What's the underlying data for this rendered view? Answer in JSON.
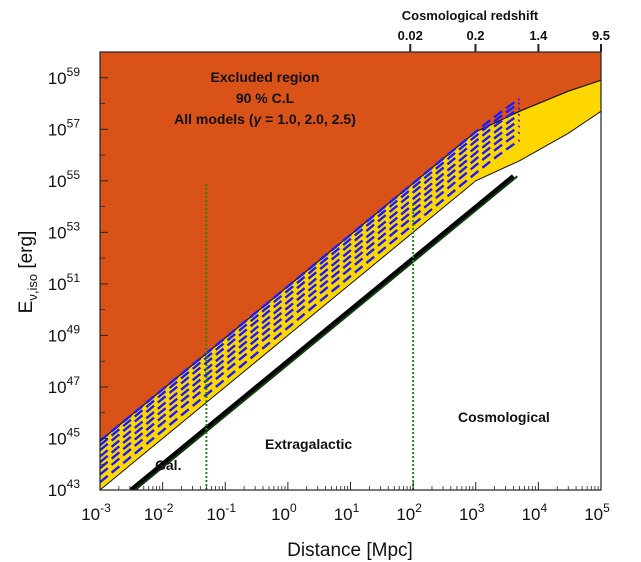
{
  "chart_data": {
    "type": "area",
    "xlabel": "Distance [Mpc]",
    "ylabel_main": "E",
    "ylabel_sub": "ν,iso",
    "ylabel_unit": " [erg]",
    "xscale": "log",
    "yscale": "log",
    "xlim": [
      0.001,
      100000
    ],
    "ylim": [
      1e+43,
      1e+60
    ],
    "x_ticks": [
      {
        "exp": -3,
        "base": "10",
        "sup": "-3"
      },
      {
        "exp": -2,
        "base": "10",
        "sup": "-2"
      },
      {
        "exp": -1,
        "base": "10",
        "sup": "-1"
      },
      {
        "exp": 0,
        "base": "10",
        "sup": "0"
      },
      {
        "exp": 1,
        "base": "10",
        "sup": "1"
      },
      {
        "exp": 2,
        "base": "10",
        "sup": "2"
      },
      {
        "exp": 3,
        "base": "10",
        "sup": "3"
      },
      {
        "exp": 4,
        "base": "10",
        "sup": "4"
      },
      {
        "exp": 5,
        "base": "10",
        "sup": "5"
      }
    ],
    "y_ticks": [
      {
        "exp": 43,
        "base": "10",
        "sup": "43"
      },
      {
        "exp": 45,
        "base": "10",
        "sup": "45"
      },
      {
        "exp": 47,
        "base": "10",
        "sup": "47"
      },
      {
        "exp": 49,
        "base": "10",
        "sup": "49"
      },
      {
        "exp": 51,
        "base": "10",
        "sup": "51"
      },
      {
        "exp": 53,
        "base": "10",
        "sup": "53"
      },
      {
        "exp": 55,
        "base": "10",
        "sup": "55"
      },
      {
        "exp": 57,
        "base": "10",
        "sup": "57"
      },
      {
        "exp": 59,
        "base": "10",
        "sup": "59"
      }
    ],
    "top_axis": {
      "label": "Cosmological redshift",
      "ticks": [
        {
          "label": "0.02",
          "distance_mpc": 90
        },
        {
          "label": "0.2",
          "distance_mpc": 990
        },
        {
          "label": "1.4",
          "distance_mpc": 10000
        },
        {
          "label": "9.5",
          "distance_mpc": 100000
        }
      ]
    },
    "series": [
      {
        "name": "Excluded region (90% C.L.)",
        "kind": "filled-region-above",
        "color": "#d95319",
        "lower_boundary": [
          [
            0.001,
            8e+44
          ],
          [
            0.1,
            8e+48
          ],
          [
            10,
            8e+52
          ],
          [
            1000,
            8e+56
          ],
          [
            5000,
            5e+57
          ],
          [
            30000,
            3e+58
          ],
          [
            100000,
            8e+58
          ]
        ]
      },
      {
        "kind": "band",
        "color": "#ffd700",
        "upper": [
          [
            0.001,
            8e+44
          ],
          [
            0.1,
            8e+48
          ],
          [
            10,
            8e+52
          ],
          [
            1000,
            8e+56
          ],
          [
            5000,
            5e+57
          ],
          [
            30000,
            3e+58
          ],
          [
            100000,
            8e+58
          ]
        ],
        "lower": [
          [
            0.001,
            1e+43
          ],
          [
            1,
            1e+49
          ],
          [
            100,
            1e+53
          ],
          [
            1000,
            1e+55
          ],
          [
            5000,
            6e+55
          ],
          [
            30000,
            7e+56
          ],
          [
            100000,
            5e+57
          ]
        ]
      },
      {
        "kind": "dashed-lines",
        "color": "#1a1aff",
        "x_start": 0.001,
        "x_end": 5000,
        "intercepts_at_x_start": [
          2e+43,
          4e+43,
          7e+43,
          1.2e+44,
          2e+44,
          3.5e+44,
          5.5e+44,
          8e+44
        ]
      },
      {
        "kind": "solid-line",
        "color": "#000000",
        "points": [
          [
            0.00316,
            1e+43
          ],
          [
            4000,
            1.5e+55
          ]
        ]
      }
    ],
    "vertical_markers": [
      {
        "x": 0.05,
        "color": "#1a8a1a",
        "style": "dotted"
      },
      {
        "x": 100,
        "color": "#1a8a1a",
        "style": "dotted"
      }
    ],
    "annotations": {
      "excluded_line1": "Excluded region",
      "excluded_line2": "90 % C.L",
      "excluded_line3_pre": "All models (",
      "excluded_line3_gamma": "γ",
      "excluded_line3_post": " = 1.0, 2.0, 2.5)",
      "gal": "Gal.",
      "extragalactic": "Extragalactic",
      "cosmological": "Cosmological"
    },
    "grid": false,
    "legend": "none"
  }
}
